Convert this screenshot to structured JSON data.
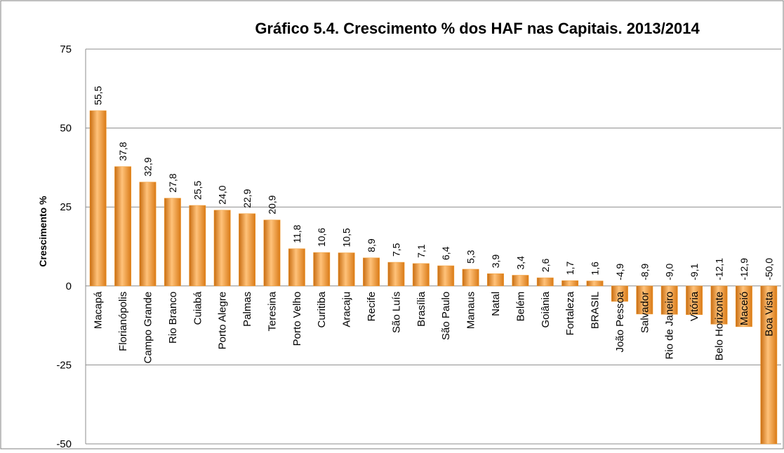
{
  "chart_data": {
    "type": "bar",
    "title": "Gráfico 5.4. Crescimento % dos HAF nas Capitais. 2013/2014",
    "y_label": "Crescimento %",
    "categories": [
      "Macapá",
      "Florianópolis",
      "Campo Grande",
      "Rio Branco",
      "Cuiabá",
      "Porto Alegre",
      "Palmas",
      "Teresina",
      "Porto Velho",
      "Curitiba",
      "Aracaju",
      "Recife",
      "São Luís",
      "Brasília",
      "São Paulo",
      "Manaus",
      "Natal",
      "Belém",
      "Goiânia",
      "Fortaleza",
      "BRASIL",
      "João Pessoa",
      "Salvador",
      "Rio de Janeiro",
      "Vitória",
      "Belo Horizonte",
      "Maceió",
      "Boa Vista"
    ],
    "values": [
      55.5,
      37.8,
      32.9,
      27.8,
      25.5,
      24.0,
      22.9,
      20.9,
      11.8,
      10.6,
      10.5,
      8.9,
      7.5,
      7.1,
      6.4,
      5.3,
      3.9,
      3.4,
      2.6,
      1.7,
      1.6,
      -4.9,
      -8.9,
      -9.0,
      -9.1,
      -12.1,
      -12.9,
      -50.0
    ],
    "value_labels": [
      "55,5",
      "37,8",
      "32,9",
      "27,8",
      "25,5",
      "24,0",
      "22,9",
      "20,9",
      "11,8",
      "10,6",
      "10,5",
      "8,9",
      "7,5",
      "7,1",
      "6,4",
      "5,3",
      "3,9",
      "3,4",
      "2,6",
      "1,7",
      "1,6",
      "-4,9",
      "-8,9",
      "-9,0",
      "-9,1",
      "-12,1",
      "-12,9",
      "-50,0"
    ],
    "color": "#f29a2e",
    "ylim": [
      -50,
      75
    ],
    "yticks": [
      -50,
      -25,
      0,
      25,
      50,
      75
    ],
    "grid": true
  }
}
